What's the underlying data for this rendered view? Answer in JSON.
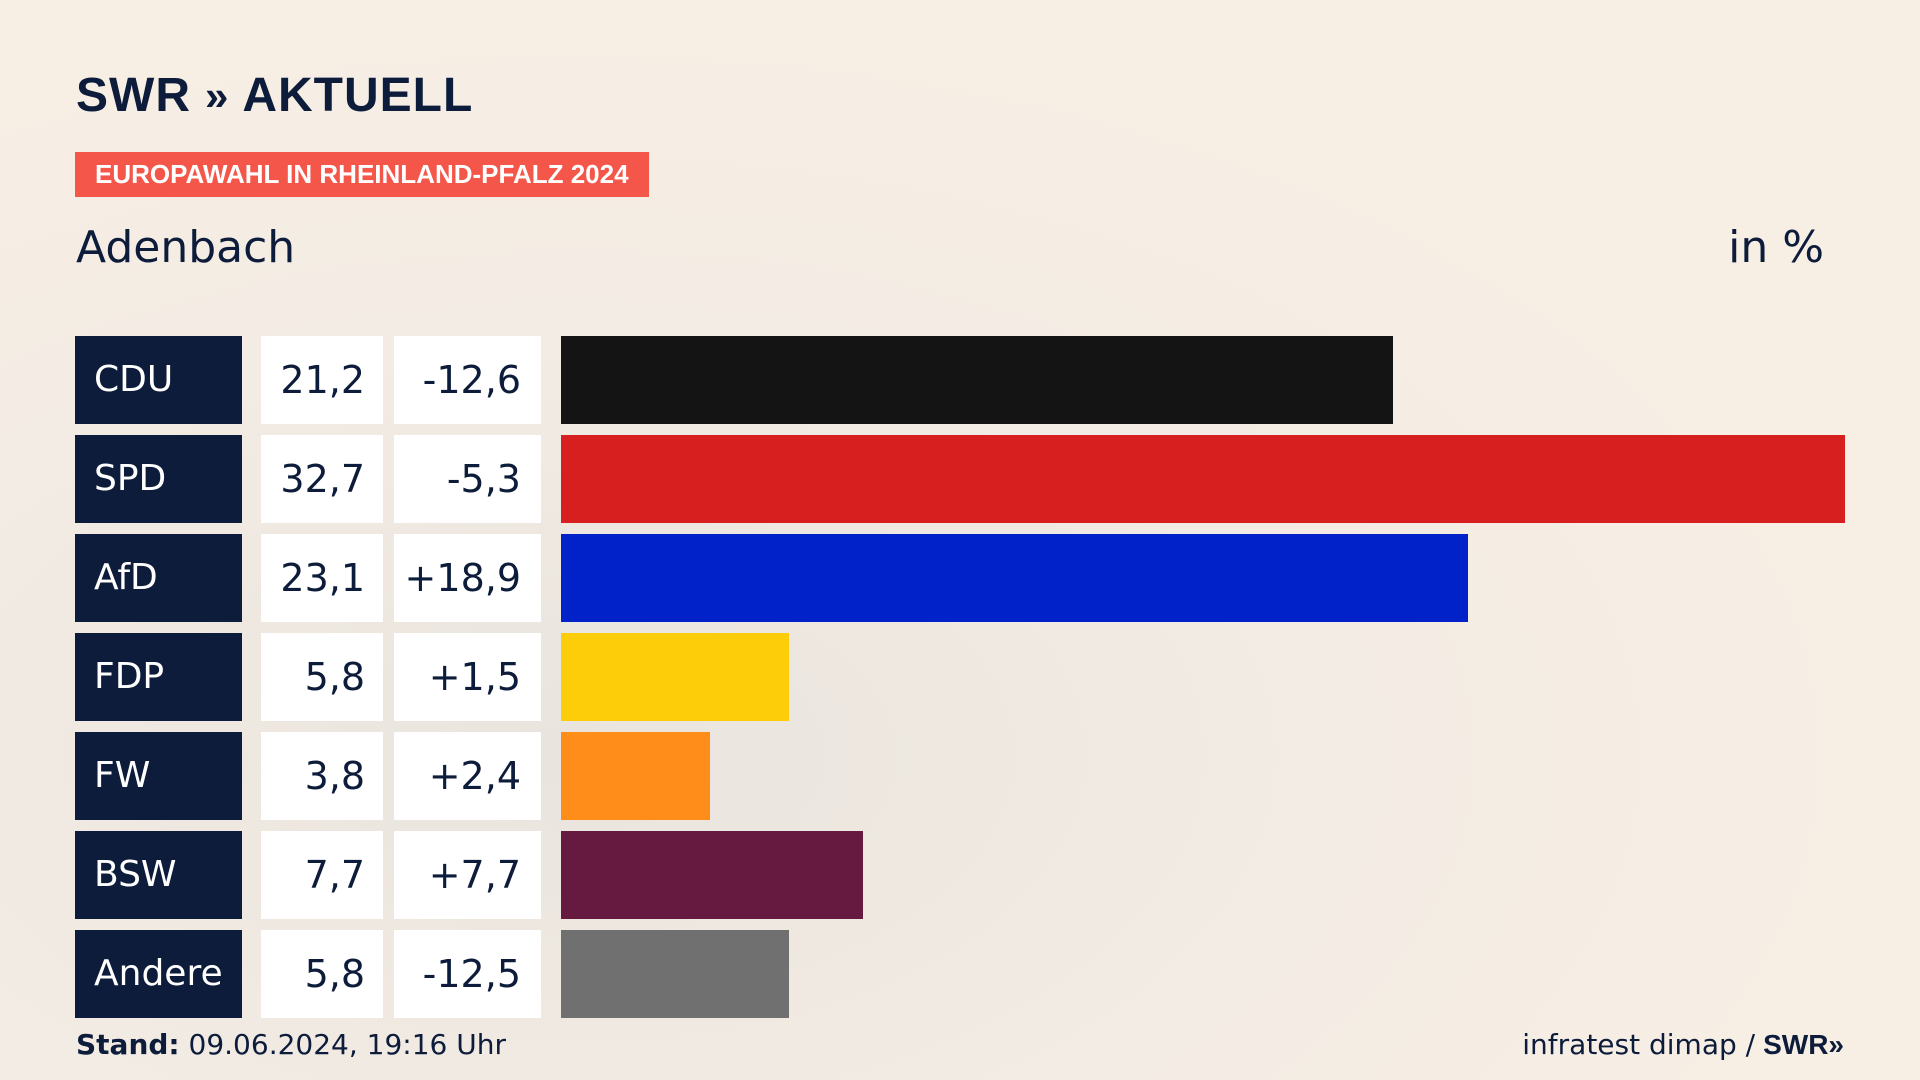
{
  "header": {
    "logo_text": "SWR",
    "logo_chevrons": "»",
    "logo_suffix": "AKTUELL",
    "tag": "EUROPAWAHL IN RHEINLAND-PFALZ 2024",
    "place": "Adenbach",
    "unit": "in %"
  },
  "chart_data": {
    "type": "bar",
    "categories": [
      "CDU",
      "SPD",
      "AfD",
      "FDP",
      "FW",
      "BSW",
      "Andere"
    ],
    "values": [
      21.2,
      32.7,
      23.1,
      5.8,
      3.8,
      7.7,
      5.8
    ],
    "value_labels": [
      "21,2",
      "32,7",
      "23,1",
      "5,8",
      "3,8",
      "7,7",
      "5,8"
    ],
    "diff_labels": [
      "-12,6",
      "-5,3",
      "+18,9",
      "+1,5",
      "+2,4",
      "+7,7",
      "-12,5"
    ],
    "colors": [
      "#141414",
      "#d71f1f",
      "#0022c8",
      "#fecd0a",
      "#ff8d1a",
      "#661a3f",
      "#707070"
    ],
    "orientation": "horizontal",
    "xlim": [
      0,
      32.7
    ],
    "title": "Adenbach",
    "xlabel": "in %"
  },
  "footer": {
    "stand_label": "Stand:",
    "stand_value": "09.06.2024, 19:16 Uhr",
    "source": "infratest dimap /",
    "source_brand": "SWR»"
  }
}
